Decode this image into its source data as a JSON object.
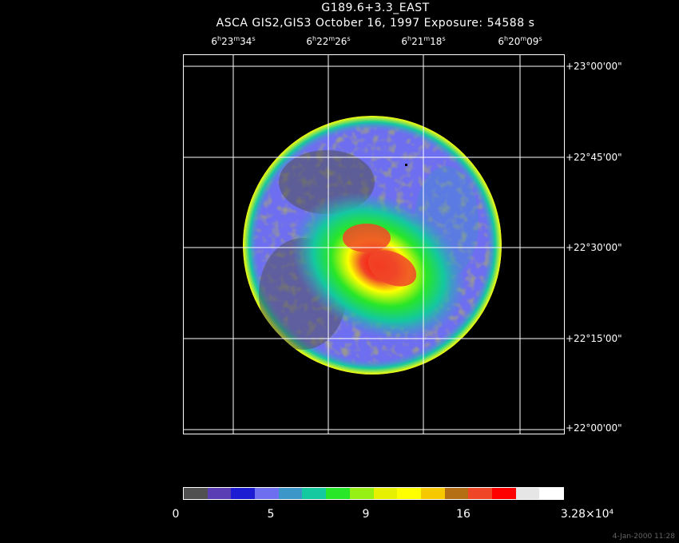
{
  "header": {
    "title": "G189.6+3.3_EAST",
    "subtitle": "ASCA GIS2,GIS3 October 16, 1997 Exposure: 54588 s"
  },
  "ra_axis": [
    {
      "h": "6",
      "m": "23",
      "s": "34"
    },
    {
      "h": "6",
      "m": "22",
      "s": "26"
    },
    {
      "h": "6",
      "m": "21",
      "s": "18"
    },
    {
      "h": "6",
      "m": "20",
      "s": "09"
    }
  ],
  "dec_axis": [
    "+23°00'00\"",
    "+22°45'00\"",
    "+22°30'00\"",
    "+22°15'00\"",
    "+22°00'00\""
  ],
  "colorbar": {
    "colors": [
      "#505050",
      "#5a3cb4",
      "#1c1cd2",
      "#6e6ef0",
      "#3c96c8",
      "#14c8a0",
      "#28e628",
      "#96f014",
      "#e6f000",
      "#ffff00",
      "#f5c800",
      "#b46e14",
      "#f04628",
      "#ff0000",
      "#e6e6e6",
      "#ffffff"
    ],
    "labels": [
      "0",
      "5",
      "9",
      "16",
      "3.28×10⁴"
    ]
  },
  "timestamp": "4-Jan-2000 11:28"
}
